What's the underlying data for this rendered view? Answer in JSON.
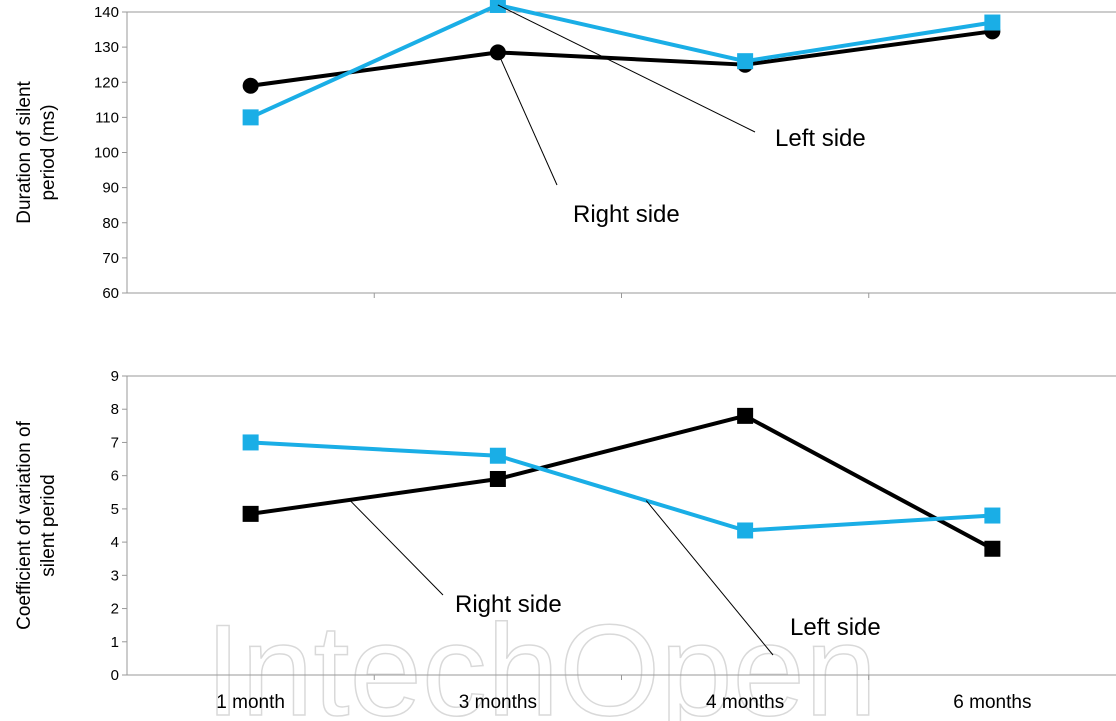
{
  "watermark": "IntechOpen",
  "chart_data": [
    {
      "type": "line",
      "categories": [
        "1 month",
        "3 months",
        "4 months",
        "6 months"
      ],
      "ylabel_lines": [
        "Duration of silent",
        "period (ms)"
      ],
      "ylim": [
        60,
        140
      ],
      "yticks": [
        60,
        70,
        80,
        90,
        100,
        110,
        120,
        130,
        140
      ],
      "legend": "none",
      "grid": false,
      "series": [
        {
          "name": "Right side",
          "values": [
            119,
            128.5,
            125,
            134.5
          ],
          "color": "#000000",
          "marker": "circle"
        },
        {
          "name": "Left side",
          "values": [
            110,
            142,
            126,
            137
          ],
          "color": "#1aaee6",
          "marker": "square"
        }
      ],
      "annotations": [
        {
          "text": "Right side",
          "series": 0,
          "point": 1
        },
        {
          "text": "Left side",
          "series": 1,
          "point": 1
        }
      ]
    },
    {
      "type": "line",
      "categories": [
        "1 month",
        "3 months",
        "4 months",
        "6 months"
      ],
      "ylabel_lines": [
        "Coefficient of variation of",
        "silent period"
      ],
      "ylim": [
        0,
        9
      ],
      "yticks": [
        0,
        1,
        2,
        3,
        4,
        5,
        6,
        7,
        8,
        9
      ],
      "legend": "none",
      "grid": false,
      "series": [
        {
          "name": "Right side",
          "values": [
            4.85,
            5.9,
            7.8,
            3.8
          ],
          "color": "#000000",
          "marker": "square"
        },
        {
          "name": "Left side",
          "values": [
            7.0,
            6.6,
            4.35,
            4.8
          ],
          "color": "#1aaee6",
          "marker": "square"
        }
      ],
      "annotations": [
        {
          "text": "Right side",
          "series": 0,
          "point": 0.4
        },
        {
          "text": "Left side",
          "series": 1,
          "point": 1.6
        }
      ]
    }
  ]
}
